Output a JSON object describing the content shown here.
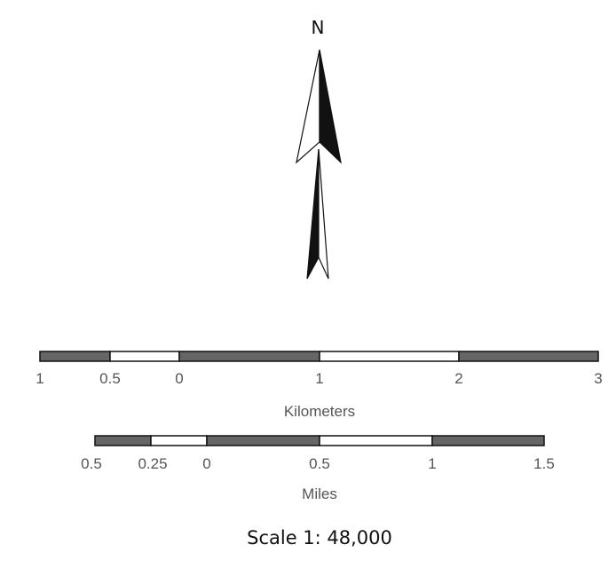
{
  "north_arrow": {
    "label": "N",
    "icon": "north-arrow-icon"
  },
  "scalebars": [
    {
      "unit": "Kilometers",
      "ticks": [
        "1",
        "0.5",
        "0",
        "1",
        "2",
        "3"
      ],
      "segments": [
        "dark",
        "light",
        "dark",
        "light",
        "dark"
      ]
    },
    {
      "unit": "Miles",
      "ticks": [
        "0.5",
        "0.25",
        "0",
        "0.5",
        "1",
        "1.5"
      ],
      "segments": [
        "dark",
        "light",
        "dark",
        "light",
        "dark"
      ]
    }
  ],
  "scale_text": "Scale 1: 48,000",
  "colors": {
    "dark": "#666666",
    "light": "#ffffff",
    "outline": "#111111",
    "label": "#555555"
  }
}
